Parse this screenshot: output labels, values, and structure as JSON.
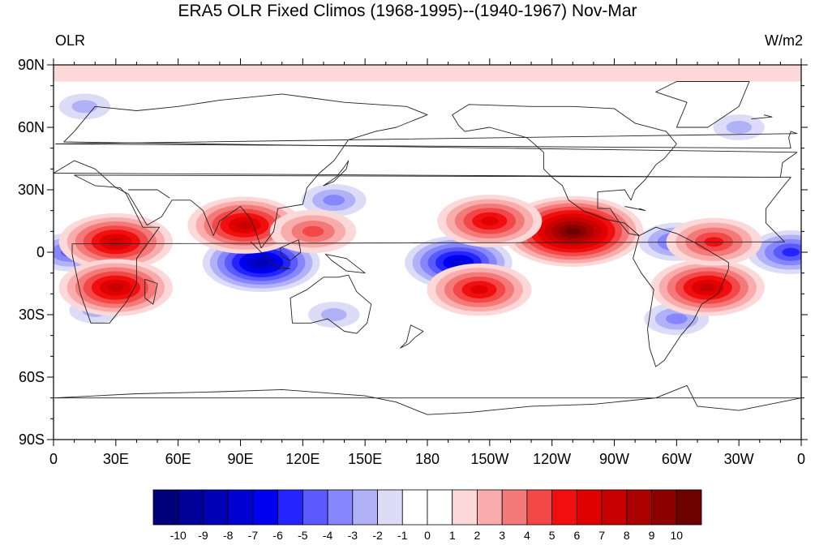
{
  "title": "ERA5 OLR Fixed Climos (1968-1995)--(1940-1967) Nov-Mar",
  "left_string": "OLR",
  "right_string": "W/m2",
  "lat_labels": [
    "90N",
    "60N",
    "30N",
    "0",
    "30S",
    "60S",
    "90S"
  ],
  "lon_labels": [
    "0",
    "30E",
    "60E",
    "90E",
    "120E",
    "150E",
    "180",
    "150W",
    "120W",
    "90W",
    "60W",
    "30W",
    "0"
  ],
  "colorbar": {
    "labels": [
      "-10",
      "-9",
      "-8",
      "-7",
      "-6",
      "-5",
      "-4",
      "-3",
      "-2",
      "-1",
      "0",
      "1",
      "2",
      "3",
      "4",
      "5",
      "6",
      "7",
      "8",
      "9",
      "10"
    ],
    "colors": [
      "#00007a",
      "#000099",
      "#0000b4",
      "#0000d2",
      "#0000f0",
      "#2424ff",
      "#5a5aff",
      "#8686ff",
      "#b1b1f7",
      "#dcdcf8",
      "#ffffff",
      "#ffffff",
      "#fcd8d8",
      "#f8acac",
      "#f47a7a",
      "#f24848",
      "#f00e0e",
      "#e10000",
      "#c80000",
      "#aa0000",
      "#8c0000",
      "#6e0000"
    ]
  },
  "icons": {
    "coastline": "coastline-outline"
  },
  "chart_data": {
    "type": "heatmap",
    "title": "ERA5 OLR Fixed Climos (1968-1995)--(1940-1967) Nov-Mar",
    "left_label": "OLR",
    "units": "W/m2",
    "projection": "cylindrical-equidistant",
    "xlim": [
      0,
      360
    ],
    "ylim": [
      -90,
      90
    ],
    "levels": [
      -10,
      -9,
      -8,
      -7,
      -6,
      -5,
      -4,
      -3,
      -2,
      -1,
      0,
      1,
      2,
      3,
      4,
      5,
      6,
      7,
      8,
      9,
      10
    ],
    "anomaly_centers": [
      {
        "lon": 100,
        "lat": -5,
        "value": -9
      },
      {
        "lon": 195,
        "lat": -5,
        "value": -8
      },
      {
        "lon": 355,
        "lat": 0,
        "value": -6
      },
      {
        "lon": 8,
        "lat": 0,
        "value": -5
      },
      {
        "lon": 300,
        "lat": 5,
        "value": -5
      },
      {
        "lon": 135,
        "lat": 25,
        "value": -4
      },
      {
        "lon": 300,
        "lat": -32,
        "value": -4
      },
      {
        "lon": 135,
        "lat": -30,
        "value": -3
      },
      {
        "lon": 20,
        "lat": -28,
        "value": -3
      },
      {
        "lon": 15,
        "lat": 70,
        "value": -3
      },
      {
        "lon": 330,
        "lat": 60,
        "value": -3
      },
      {
        "lon": 250,
        "lat": 10,
        "value": 10
      },
      {
        "lon": 210,
        "lat": 15,
        "value": 6
      },
      {
        "lon": 30,
        "lat": 5,
        "value": 7
      },
      {
        "lon": 30,
        "lat": -17,
        "value": 7
      },
      {
        "lon": 92,
        "lat": 13,
        "value": 7
      },
      {
        "lon": 205,
        "lat": -18,
        "value": 6
      },
      {
        "lon": 315,
        "lat": -17,
        "value": 7
      },
      {
        "lon": 318,
        "lat": 5,
        "value": 5
      },
      {
        "lon": 125,
        "lat": 10,
        "value": 4
      }
    ]
  }
}
